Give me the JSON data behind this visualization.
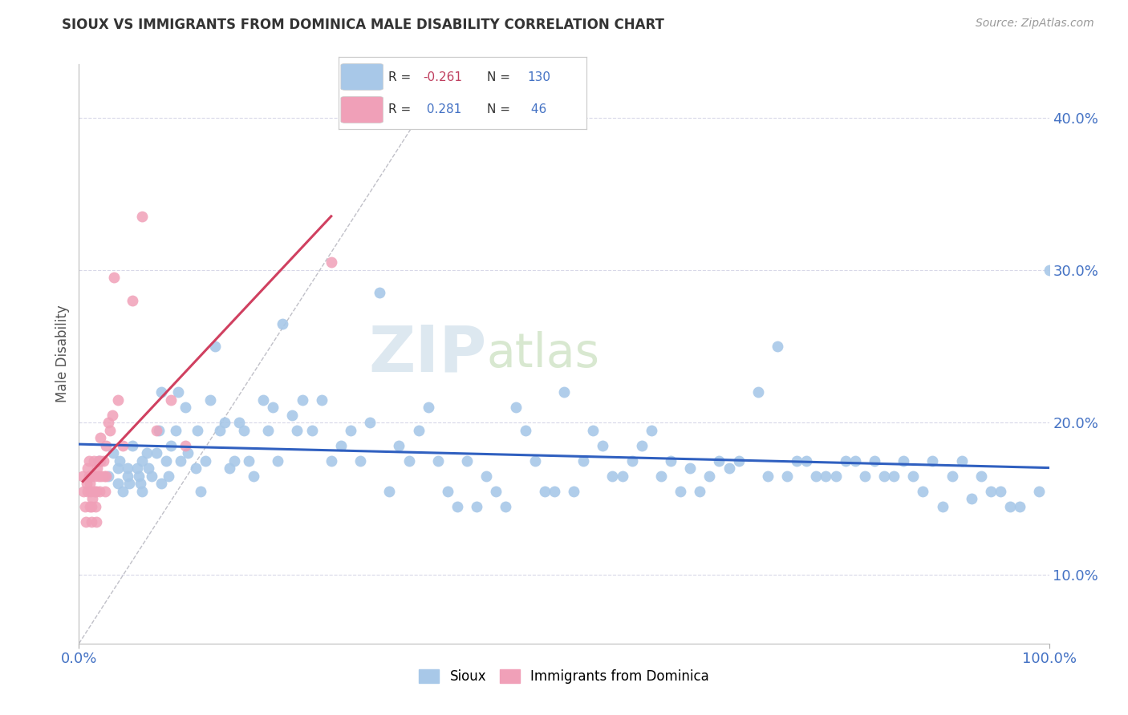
{
  "title": "SIOUX VS IMMIGRANTS FROM DOMINICA MALE DISABILITY CORRELATION CHART",
  "source": "Source: ZipAtlas.com",
  "ylabel": "Male Disability",
  "watermark_zip": "ZIP",
  "watermark_atlas": "atlas",
  "legend_label1": "Sioux",
  "legend_label2": "Immigrants from Dominica",
  "sioux_color": "#a8c8e8",
  "dominica_color": "#f0a0b8",
  "sioux_line_color": "#3060c0",
  "dominica_line_color": "#d04060",
  "xlim": [
    0.0,
    1.0
  ],
  "ylim": [
    0.055,
    0.43
  ],
  "yticks": [
    0.1,
    0.2,
    0.3,
    0.4
  ],
  "ytick_labels": [
    "10.0%",
    "20.0%",
    "30.0%",
    "40.0%"
  ],
  "grid_color": "#d8d8e8",
  "background_color": "#ffffff",
  "sioux_x": [
    0.02,
    0.03,
    0.035,
    0.04,
    0.04,
    0.042,
    0.045,
    0.05,
    0.05,
    0.052,
    0.055,
    0.06,
    0.062,
    0.063,
    0.065,
    0.065,
    0.07,
    0.072,
    0.075,
    0.08,
    0.082,
    0.085,
    0.085,
    0.09,
    0.092,
    0.095,
    0.1,
    0.102,
    0.105,
    0.11,
    0.112,
    0.12,
    0.122,
    0.125,
    0.13,
    0.135,
    0.14,
    0.145,
    0.15,
    0.155,
    0.16,
    0.165,
    0.17,
    0.175,
    0.18,
    0.19,
    0.195,
    0.2,
    0.205,
    0.21,
    0.22,
    0.225,
    0.23,
    0.24,
    0.25,
    0.26,
    0.27,
    0.28,
    0.3,
    0.31,
    0.32,
    0.34,
    0.35,
    0.37,
    0.38,
    0.4,
    0.41,
    0.43,
    0.45,
    0.46,
    0.48,
    0.5,
    0.52,
    0.53,
    0.55,
    0.57,
    0.59,
    0.61,
    0.63,
    0.65,
    0.67,
    0.7,
    0.72,
    0.74,
    0.76,
    0.78,
    0.8,
    0.82,
    0.84,
    0.86,
    0.88,
    0.9,
    0.91,
    0.93,
    0.95,
    0.97,
    0.99,
    1.0,
    0.29,
    0.33,
    0.36,
    0.39,
    0.42,
    0.44,
    0.47,
    0.49,
    0.51,
    0.54,
    0.56,
    0.58,
    0.6,
    0.62,
    0.64,
    0.66,
    0.68,
    0.71,
    0.73,
    0.75,
    0.77,
    0.79,
    0.81,
    0.83,
    0.85,
    0.87,
    0.89,
    0.92,
    0.94,
    0.96
  ],
  "sioux_y": [
    0.175,
    0.165,
    0.18,
    0.17,
    0.16,
    0.175,
    0.155,
    0.17,
    0.165,
    0.16,
    0.185,
    0.17,
    0.165,
    0.16,
    0.175,
    0.155,
    0.18,
    0.17,
    0.165,
    0.18,
    0.195,
    0.22,
    0.16,
    0.175,
    0.165,
    0.185,
    0.195,
    0.22,
    0.175,
    0.21,
    0.18,
    0.17,
    0.195,
    0.155,
    0.175,
    0.215,
    0.25,
    0.195,
    0.2,
    0.17,
    0.175,
    0.2,
    0.195,
    0.175,
    0.165,
    0.215,
    0.195,
    0.21,
    0.175,
    0.265,
    0.205,
    0.195,
    0.215,
    0.195,
    0.215,
    0.175,
    0.185,
    0.195,
    0.2,
    0.285,
    0.155,
    0.175,
    0.195,
    0.175,
    0.155,
    0.175,
    0.145,
    0.155,
    0.21,
    0.195,
    0.155,
    0.22,
    0.175,
    0.195,
    0.165,
    0.175,
    0.195,
    0.175,
    0.17,
    0.165,
    0.17,
    0.22,
    0.25,
    0.175,
    0.165,
    0.165,
    0.175,
    0.175,
    0.165,
    0.165,
    0.175,
    0.165,
    0.175,
    0.165,
    0.155,
    0.145,
    0.155,
    0.3,
    0.175,
    0.185,
    0.21,
    0.145,
    0.165,
    0.145,
    0.175,
    0.155,
    0.155,
    0.185,
    0.165,
    0.185,
    0.165,
    0.155,
    0.155,
    0.175,
    0.175,
    0.165,
    0.165,
    0.175,
    0.165,
    0.175,
    0.165,
    0.165,
    0.175,
    0.155,
    0.145,
    0.15,
    0.155,
    0.145
  ],
  "dominica_x": [
    0.004,
    0.005,
    0.006,
    0.007,
    0.008,
    0.009,
    0.009,
    0.01,
    0.01,
    0.011,
    0.011,
    0.012,
    0.012,
    0.013,
    0.013,
    0.014,
    0.015,
    0.016,
    0.016,
    0.017,
    0.018,
    0.018,
    0.019,
    0.02,
    0.02,
    0.021,
    0.022,
    0.022,
    0.023,
    0.025,
    0.026,
    0.027,
    0.028,
    0.028,
    0.03,
    0.032,
    0.034,
    0.036,
    0.04,
    0.045,
    0.055,
    0.065,
    0.08,
    0.095,
    0.11,
    0.26
  ],
  "dominica_y": [
    0.165,
    0.155,
    0.145,
    0.135,
    0.16,
    0.155,
    0.17,
    0.165,
    0.175,
    0.16,
    0.145,
    0.165,
    0.155,
    0.145,
    0.135,
    0.15,
    0.175,
    0.165,
    0.155,
    0.145,
    0.135,
    0.155,
    0.17,
    0.175,
    0.165,
    0.155,
    0.175,
    0.19,
    0.165,
    0.175,
    0.165,
    0.155,
    0.165,
    0.185,
    0.2,
    0.195,
    0.205,
    0.295,
    0.215,
    0.185,
    0.28,
    0.335,
    0.195,
    0.215,
    0.185,
    0.305
  ]
}
